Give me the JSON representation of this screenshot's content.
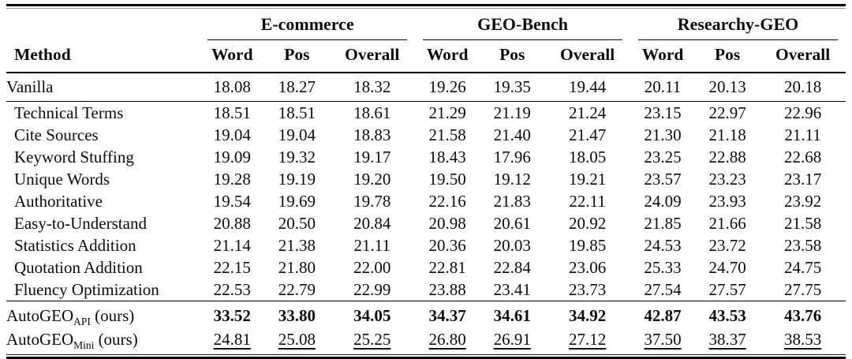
{
  "table": {
    "method_header": "Method",
    "groups": [
      {
        "label": "E-commerce",
        "sub_headers": [
          "Word",
          "Pos",
          "Overall"
        ]
      },
      {
        "label": "GEO-Bench",
        "sub_headers": [
          "Word",
          "Pos",
          "Overall"
        ]
      },
      {
        "label": "Researchy-GEO",
        "sub_headers": [
          "Word",
          "Pos",
          "Overall"
        ]
      }
    ],
    "sections": [
      {
        "name": "baseline",
        "rows": [
          {
            "method": {
              "base": "Vanilla",
              "sub": "",
              "suffix": ""
            },
            "style": "normal",
            "values": [
              "18.08",
              "18.27",
              "18.32",
              "19.26",
              "19.35",
              "19.44",
              "20.11",
              "20.13",
              "20.18"
            ]
          }
        ]
      },
      {
        "name": "heuristic-methods",
        "rows": [
          {
            "method": {
              "base": "Technical Terms",
              "sub": "",
              "suffix": ""
            },
            "style": "normal",
            "values": [
              "18.51",
              "18.51",
              "18.61",
              "21.29",
              "21.19",
              "21.24",
              "23.15",
              "22.97",
              "22.96"
            ]
          },
          {
            "method": {
              "base": "Cite Sources",
              "sub": "",
              "suffix": ""
            },
            "style": "normal",
            "values": [
              "19.04",
              "19.04",
              "18.83",
              "21.58",
              "21.40",
              "21.47",
              "21.30",
              "21.18",
              "21.11"
            ]
          },
          {
            "method": {
              "base": "Keyword Stuffing",
              "sub": "",
              "suffix": ""
            },
            "style": "normal",
            "values": [
              "19.09",
              "19.32",
              "19.17",
              "18.43",
              "17.96",
              "18.05",
              "23.25",
              "22.88",
              "22.68"
            ]
          },
          {
            "method": {
              "base": "Unique Words",
              "sub": "",
              "suffix": ""
            },
            "style": "normal",
            "values": [
              "19.28",
              "19.19",
              "19.20",
              "19.50",
              "19.12",
              "19.21",
              "23.57",
              "23.23",
              "23.17"
            ]
          },
          {
            "method": {
              "base": "Authoritative",
              "sub": "",
              "suffix": ""
            },
            "style": "normal",
            "values": [
              "19.54",
              "19.69",
              "19.78",
              "22.16",
              "21.83",
              "22.11",
              "24.09",
              "23.93",
              "23.92"
            ]
          },
          {
            "method": {
              "base": "Easy-to-Understand",
              "sub": "",
              "suffix": ""
            },
            "style": "normal",
            "values": [
              "20.88",
              "20.50",
              "20.84",
              "20.98",
              "20.61",
              "20.92",
              "21.85",
              "21.66",
              "21.58"
            ]
          },
          {
            "method": {
              "base": "Statistics Addition",
              "sub": "",
              "suffix": ""
            },
            "style": "normal",
            "values": [
              "21.14",
              "21.38",
              "21.11",
              "20.36",
              "20.03",
              "19.85",
              "24.53",
              "23.72",
              "23.58"
            ]
          },
          {
            "method": {
              "base": "Quotation Addition",
              "sub": "",
              "suffix": ""
            },
            "style": "normal",
            "values": [
              "22.15",
              "21.80",
              "22.00",
              "22.81",
              "22.84",
              "23.06",
              "25.33",
              "24.70",
              "24.75"
            ]
          },
          {
            "method": {
              "base": "Fluency Optimization",
              "sub": "",
              "suffix": ""
            },
            "style": "normal",
            "values": [
              "22.53",
              "22.79",
              "22.99",
              "23.88",
              "23.41",
              "23.73",
              "27.54",
              "27.57",
              "27.75"
            ]
          }
        ]
      },
      {
        "name": "ours",
        "rows": [
          {
            "method": {
              "base": "AutoGEO",
              "sub": "API",
              "suffix": " (ours)"
            },
            "style": "bold",
            "values": [
              "33.52",
              "33.80",
              "34.05",
              "34.37",
              "34.61",
              "34.92",
              "42.87",
              "43.53",
              "43.76"
            ]
          },
          {
            "method": {
              "base": "AutoGEO",
              "sub": "Mini",
              "suffix": " (ours)"
            },
            "style": "underline",
            "values": [
              "24.81",
              "25.08",
              "25.25",
              "26.80",
              "26.91",
              "27.12",
              "37.50",
              "38.37",
              "38.53"
            ]
          }
        ]
      }
    ]
  }
}
